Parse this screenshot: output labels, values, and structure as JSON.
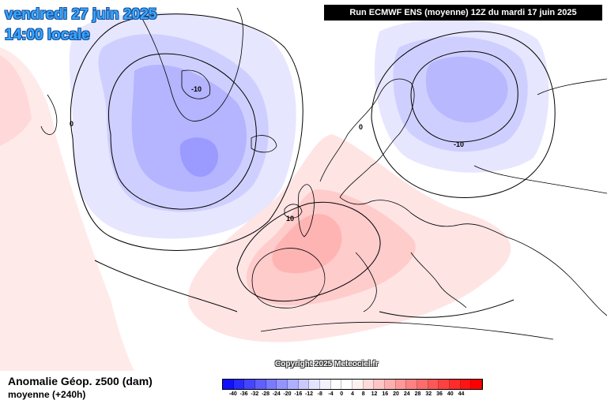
{
  "header": {
    "date_line": "vendredi 27 juin 2025",
    "time_line": "14:00 locale",
    "run_banner": "Run ECMWF ENS (moyenne) 12Z du mardi 17 juin 2025"
  },
  "copyright": "Copyright 2025 Meteociel.fr",
  "footer": {
    "field_title": "Anomalie Géop. z500 (dam)",
    "field_subtitle": "moyenne   (+240h)"
  },
  "colorbar": {
    "colors": [
      "#1010ff",
      "#2a2aff",
      "#4545ff",
      "#5f5fff",
      "#7a7aff",
      "#9494ff",
      "#afafff",
      "#c9c9ff",
      "#e4e4ff",
      "#f2f2ff",
      "#ffffff",
      "#ffffff",
      "#fff0f0",
      "#ffdada",
      "#ffc4c4",
      "#ffaeae",
      "#ff9898",
      "#ff8282",
      "#ff6c6c",
      "#ff5656",
      "#ff4040",
      "#ff2a2a",
      "#ff1414",
      "#ff0000"
    ],
    "labels": [
      "-40",
      "-36",
      "-32",
      "-28",
      "-24",
      "-20",
      "-16",
      "-12",
      "-8",
      "-4",
      "0",
      "4",
      "8",
      "12",
      "16",
      "20",
      "24",
      "28",
      "32",
      "36",
      "40",
      "44"
    ]
  },
  "map": {
    "contour_labels": [
      {
        "text": "-10"
      },
      {
        "text": "0"
      },
      {
        "text": "0"
      },
      {
        "text": "-10"
      },
      {
        "text": "10"
      }
    ],
    "colors": {
      "negative_light": "#e4e4ff",
      "negative_mid": "#c9c9ff",
      "negative_strong": "#afafff",
      "negative_core": "#9494ff",
      "positive_light": "#ffe8e8",
      "positive_mid": "#ffcfcf",
      "positive_strong": "#ffb4b4",
      "coastline": "#000000"
    }
  }
}
